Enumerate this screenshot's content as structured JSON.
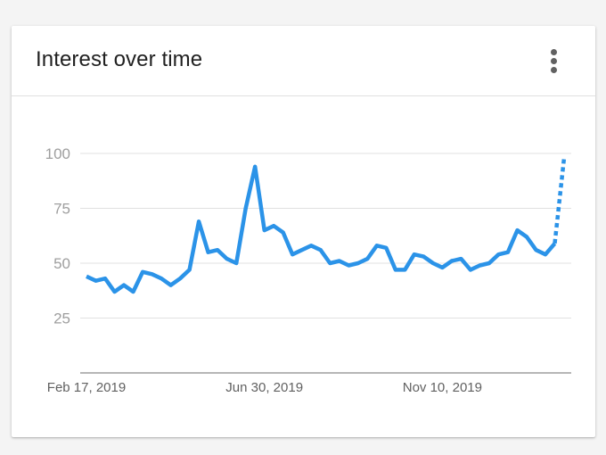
{
  "card": {
    "title": "Interest over time",
    "menu_icon": "more-vert-icon"
  },
  "colors": {
    "line": "#2b93e8",
    "grid": "#e0e0e0",
    "axis": "#9e9e9e",
    "tick_label": "#9e9e9e",
    "date_label": "#616161"
  },
  "chart_data": {
    "type": "line",
    "title": "Interest over time",
    "xlabel": "",
    "ylabel": "",
    "ylim": [
      0,
      100
    ],
    "y_ticks": [
      25,
      50,
      75,
      100
    ],
    "y_tick_labels": [
      "25",
      "50",
      "75",
      "100"
    ],
    "x_tick_labels": [
      "Feb 17, 2019",
      "Jun 30, 2019",
      "Nov 10, 2019"
    ],
    "grid": true,
    "legend": "none",
    "x_start": "2019-02-17",
    "x_step": "1 week",
    "series": [
      {
        "values": [
          44,
          42,
          43,
          37,
          40,
          37,
          46,
          45,
          43,
          40,
          43,
          47,
          69,
          55,
          56,
          52,
          50,
          75,
          94,
          65,
          67,
          64,
          54,
          56,
          58,
          56,
          50,
          51,
          49,
          50,
          52,
          58,
          57,
          47,
          47,
          54,
          53,
          50,
          48,
          51,
          52,
          47,
          49,
          50,
          54,
          55,
          65,
          62,
          56,
          54,
          59
        ],
        "partial_values": [
          59,
          98
        ]
      }
    ]
  }
}
